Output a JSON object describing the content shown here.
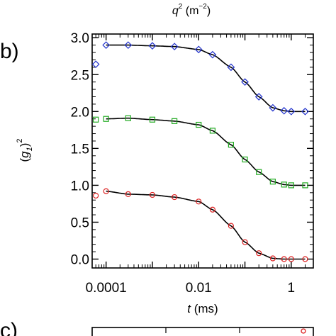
{
  "figure": {
    "top_axis_title_symbol": "q",
    "top_axis_title_exp": "2",
    "top_axis_title_unit_open": " (m",
    "top_axis_title_unit_exp": "−2",
    "top_axis_title_unit_close": ")",
    "panel_b_label": "b)",
    "panel_c_label": "c)"
  },
  "chart_data": {
    "type": "scatter",
    "title": "",
    "xlabel_symbol": "t",
    "xlabel_unit": " (ms)",
    "ylabel_open": "(",
    "ylabel_symbol": "g",
    "ylabel_sub": "1",
    "ylabel_close": ")",
    "ylabel_exp": "2",
    "xscale": "log",
    "xlim": [
      5e-05,
      3
    ],
    "ylim": [
      -0.12,
      3.05
    ],
    "x_ticks": [
      {
        "value": 0.0001,
        "label": "0.0001"
      },
      {
        "value": 0.01,
        "label": "0.01"
      },
      {
        "value": 1,
        "label": "1"
      }
    ],
    "y_ticks": [
      {
        "value": 0.0,
        "label": "0.0"
      },
      {
        "value": 0.5,
        "label": "0.5"
      },
      {
        "value": 1.0,
        "label": "1.0"
      },
      {
        "value": 1.5,
        "label": "1.5"
      },
      {
        "value": 2.0,
        "label": "2.0"
      },
      {
        "value": 2.5,
        "label": "2.5"
      },
      {
        "value": 3.0,
        "label": "3.0"
      }
    ],
    "grid": false,
    "legend": "none",
    "fit_color": "#000000",
    "series": [
      {
        "marker": "diamond",
        "color": "#2233cc",
        "x": [
          6e-05,
          0.0001,
          0.0003,
          0.001,
          0.003,
          0.01,
          0.02,
          0.05,
          0.1,
          0.2,
          0.4,
          0.7,
          1.0,
          2.0
        ],
        "y": [
          2.64,
          2.9,
          2.9,
          2.89,
          2.88,
          2.84,
          2.77,
          2.6,
          2.4,
          2.2,
          2.05,
          2.01,
          2.0,
          2.0
        ]
      },
      {
        "marker": "square",
        "color": "#22aa22",
        "x": [
          6e-05,
          0.0001,
          0.0003,
          0.001,
          0.003,
          0.01,
          0.02,
          0.05,
          0.1,
          0.2,
          0.4,
          0.7,
          1.0,
          2.0
        ],
        "y": [
          1.89,
          1.9,
          1.91,
          1.89,
          1.87,
          1.82,
          1.74,
          1.55,
          1.35,
          1.18,
          1.05,
          1.01,
          1.0,
          1.0
        ]
      },
      {
        "marker": "circle",
        "color": "#dd2222",
        "x": [
          6e-05,
          0.0001,
          0.0003,
          0.001,
          0.003,
          0.01,
          0.02,
          0.05,
          0.1,
          0.2,
          0.4,
          0.7,
          1.0,
          2.0
        ],
        "y": [
          0.86,
          0.92,
          0.88,
          0.87,
          0.84,
          0.78,
          0.67,
          0.45,
          0.23,
          0.08,
          0.01,
          0.0,
          0.0,
          0.0
        ]
      }
    ]
  }
}
